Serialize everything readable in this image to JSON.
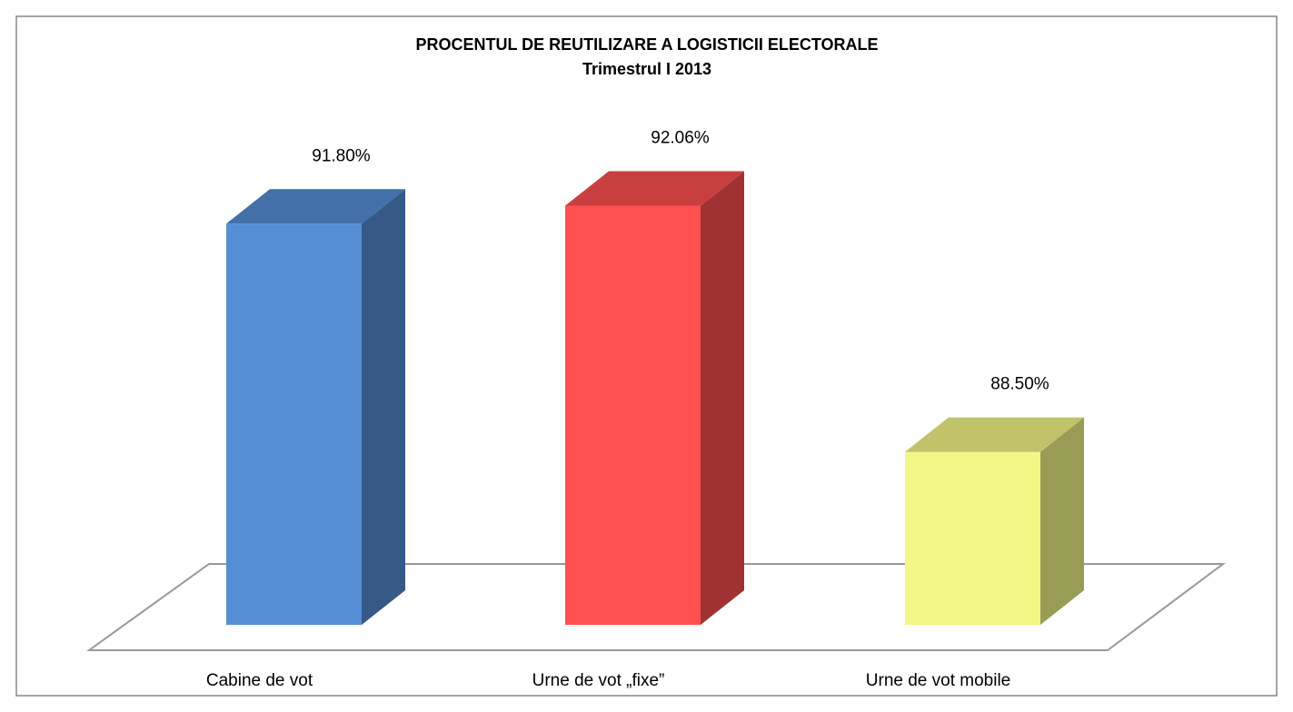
{
  "chart_data": {
    "type": "bar3d",
    "title": "PROCENTUL DE REUTILIZARE A LOGISTICII ELECTORALE",
    "subtitle": "Trimestrul I 2013",
    "categories": [
      "Cabine de vot",
      "Urne de vot „fixe”",
      "Urne de vot mobile"
    ],
    "values": [
      91.8,
      92.06,
      88.5
    ],
    "value_labels": [
      "91.80%",
      "92.06%",
      "88.50%"
    ],
    "colors": [
      "#558ed5",
      "#ff5050",
      "#f3f785"
    ],
    "ylim": [
      86,
      92.5
    ]
  }
}
